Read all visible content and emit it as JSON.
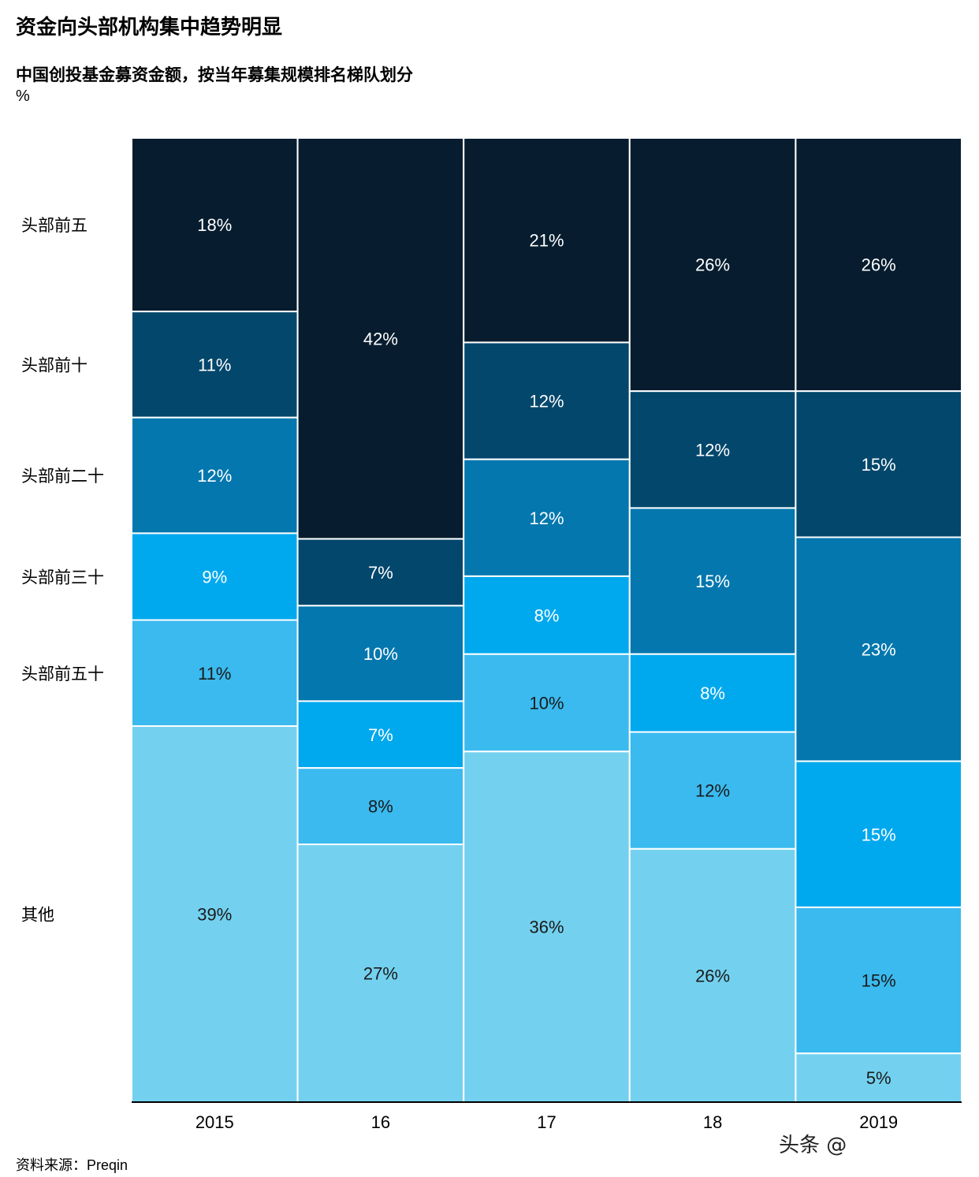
{
  "title": "资金向头部机构集中趋势明显",
  "subtitle": "中国创投基金募资金额，按当年募集规模排名梯队划分",
  "unit": "%",
  "source": "资料来源：Preqin",
  "watermark": "头条 @",
  "chart_data": {
    "type": "bar",
    "stacked": true,
    "normalized_100_percent": true,
    "categories": [
      "2015",
      "16",
      "17",
      "18",
      "2019"
    ],
    "series": [
      {
        "name": "头部前五",
        "values": [
          18,
          42,
          21,
          26,
          26
        ],
        "color": "#071d2f"
      },
      {
        "name": "头部前十",
        "values": [
          11,
          7,
          12,
          12,
          15
        ],
        "color": "#03476c"
      },
      {
        "name": "头部前二十",
        "values": [
          12,
          10,
          12,
          15,
          23
        ],
        "color": "#0477ae"
      },
      {
        "name": "头部前三十",
        "values": [
          9,
          7,
          8,
          8,
          15
        ],
        "color": "#00a8ee"
      },
      {
        "name": "头部前五十",
        "values": [
          11,
          8,
          10,
          12,
          15
        ],
        "color": "#3abaef"
      },
      {
        "name": "其他",
        "values": [
          39,
          27,
          36,
          26,
          5
        ],
        "color": "#73d1ef"
      }
    ],
    "row_labels": [
      "头部前五",
      "头部前十",
      "头部前二十",
      "头部前三十",
      "头部前五十",
      "其他"
    ],
    "label_dark_text_series": [
      "头部前五十",
      "其他"
    ],
    "ylim": [
      0,
      100
    ],
    "legend": "left"
  }
}
